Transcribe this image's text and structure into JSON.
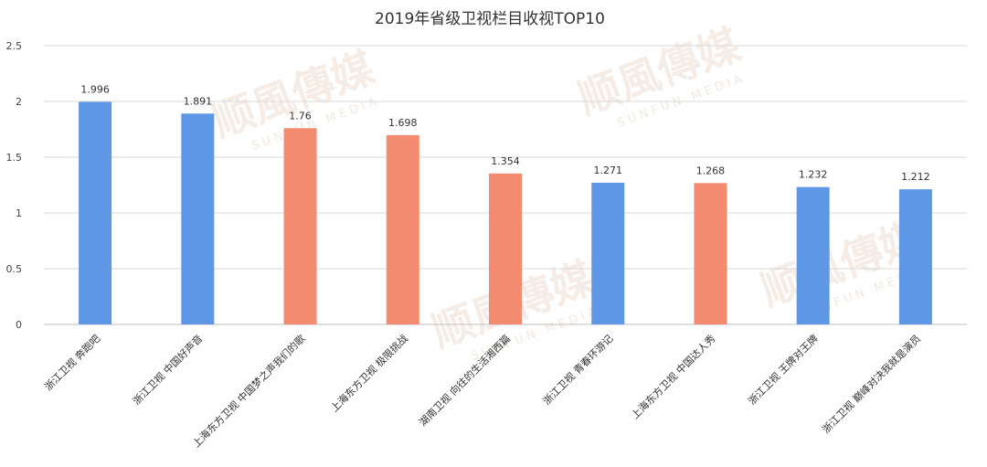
{
  "watermark": {
    "cn": "顺風傳媒",
    "en": "SUNFUN MEDIA"
  },
  "chart_data": {
    "type": "bar",
    "title": "2019年省级卫视栏目收视TOP10",
    "xlabel": "",
    "ylabel": "",
    "ylim": [
      0,
      2.5
    ],
    "yticks": [
      "0",
      "0.5",
      "1",
      "1.5",
      "2",
      "2.5"
    ],
    "ytick_values": [
      0,
      0.5,
      1,
      1.5,
      2,
      2.5
    ],
    "grid": true,
    "legend": "none",
    "categories": [
      "浙江卫视 奔跑吧",
      "浙江卫视 中国好声音",
      "上海东方卫视 中国梦之声我们的歌",
      "上海东方卫视 极限挑战",
      "湖南卫视 向往的生活湘西篇",
      "浙江卫视 青春环游记",
      "上海东方卫视 中国达人秀",
      "浙江卫视 王牌对王牌",
      "浙江卫视 巅峰对决我就是演员"
    ],
    "values": [
      1.996,
      1.891,
      1.76,
      1.698,
      1.354,
      1.271,
      1.268,
      1.232,
      1.212
    ],
    "value_labels": [
      "1.996",
      "1.891",
      "1.76",
      "1.698",
      "1.354",
      "1.271",
      "1.268",
      "1.232",
      "1.212"
    ],
    "bar_colors": [
      "#5e97e6",
      "#5e97e6",
      "#f28b70",
      "#f28b70",
      "#f28b70",
      "#5e97e6",
      "#f28b70",
      "#5e97e6",
      "#5e97e6"
    ],
    "colors": {
      "blue": "#5e97e6",
      "salmon": "#f28b70",
      "grid": "#d9d9d9",
      "axis": "#bfbfbf"
    }
  }
}
